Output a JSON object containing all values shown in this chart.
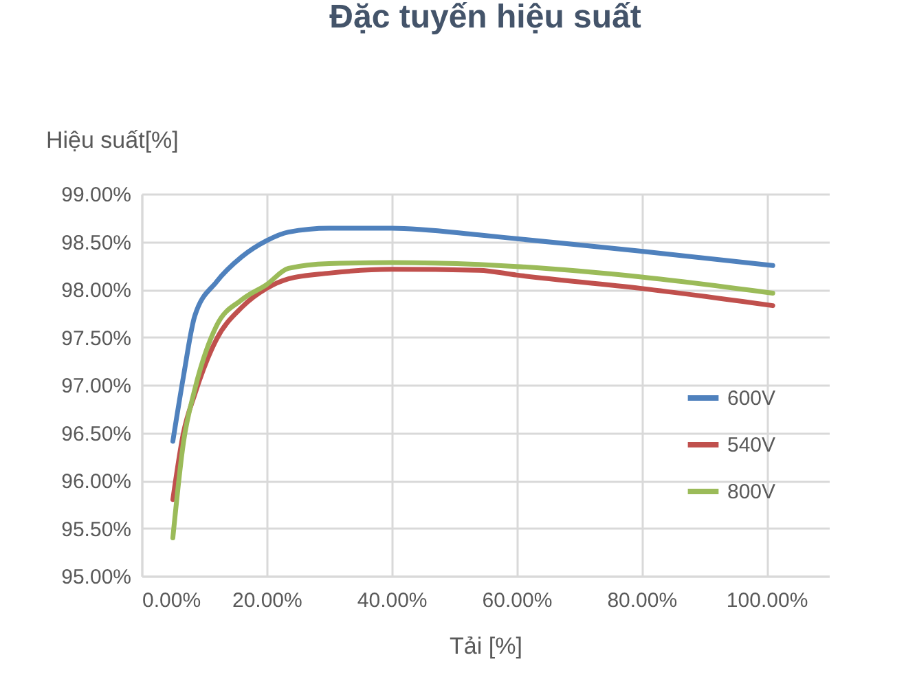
{
  "chart_data": {
    "type": "line",
    "title": "Đặc tuyến hiệu suất",
    "xlabel": "Tải [%]",
    "ylabel": "Hiệu suất[%]",
    "x": [
      5,
      6.7,
      8.5,
      12,
      16,
      20,
      23.5,
      30,
      40,
      54,
      60,
      80,
      101
    ],
    "series": [
      {
        "name": "600V",
        "color": "#4f81bd",
        "values": [
          96.41,
          97.09,
          97.72,
          98.08,
          98.34,
          98.51,
          98.6,
          98.64,
          98.64,
          98.57,
          98.53,
          98.4,
          98.25
        ]
      },
      {
        "name": "540V",
        "color": "#c0504d",
        "values": [
          95.8,
          96.5,
          96.9,
          97.48,
          97.81,
          98.01,
          98.11,
          98.17,
          98.21,
          98.2,
          98.15,
          98.01,
          97.83
        ]
      },
      {
        "name": "800V",
        "color": "#9bbb59",
        "values": [
          95.4,
          96.4,
          96.95,
          97.62,
          97.89,
          98.05,
          98.22,
          98.27,
          98.28,
          98.26,
          98.24,
          98.13,
          97.96
        ]
      }
    ],
    "xlim": [
      0,
      110
    ],
    "xticks": [
      {
        "value": 0,
        "label": "0.00%"
      },
      {
        "value": 20,
        "label": "20.00%"
      },
      {
        "value": 40,
        "label": "40.00%"
      },
      {
        "value": 60,
        "label": "60.00%"
      },
      {
        "value": 80,
        "label": "80.00%"
      },
      {
        "value": 100,
        "label": "100.00%"
      }
    ],
    "ylim": [
      95,
      99
    ],
    "yticks": [
      {
        "value": 95,
        "label": "95.00%"
      },
      {
        "value": 95.5,
        "label": "95.50%"
      },
      {
        "value": 96,
        "label": "96.00%"
      },
      {
        "value": 96.5,
        "label": "96.50%"
      },
      {
        "value": 97,
        "label": "97.00%"
      },
      {
        "value": 97.5,
        "label": "97.50%"
      },
      {
        "value": 98,
        "label": "98.00%"
      },
      {
        "value": 98.5,
        "label": "98.50%"
      },
      {
        "value": 99,
        "label": "99.00%"
      }
    ],
    "grid": true,
    "legend": "right",
    "marker": "none",
    "line_style": "solid"
  }
}
